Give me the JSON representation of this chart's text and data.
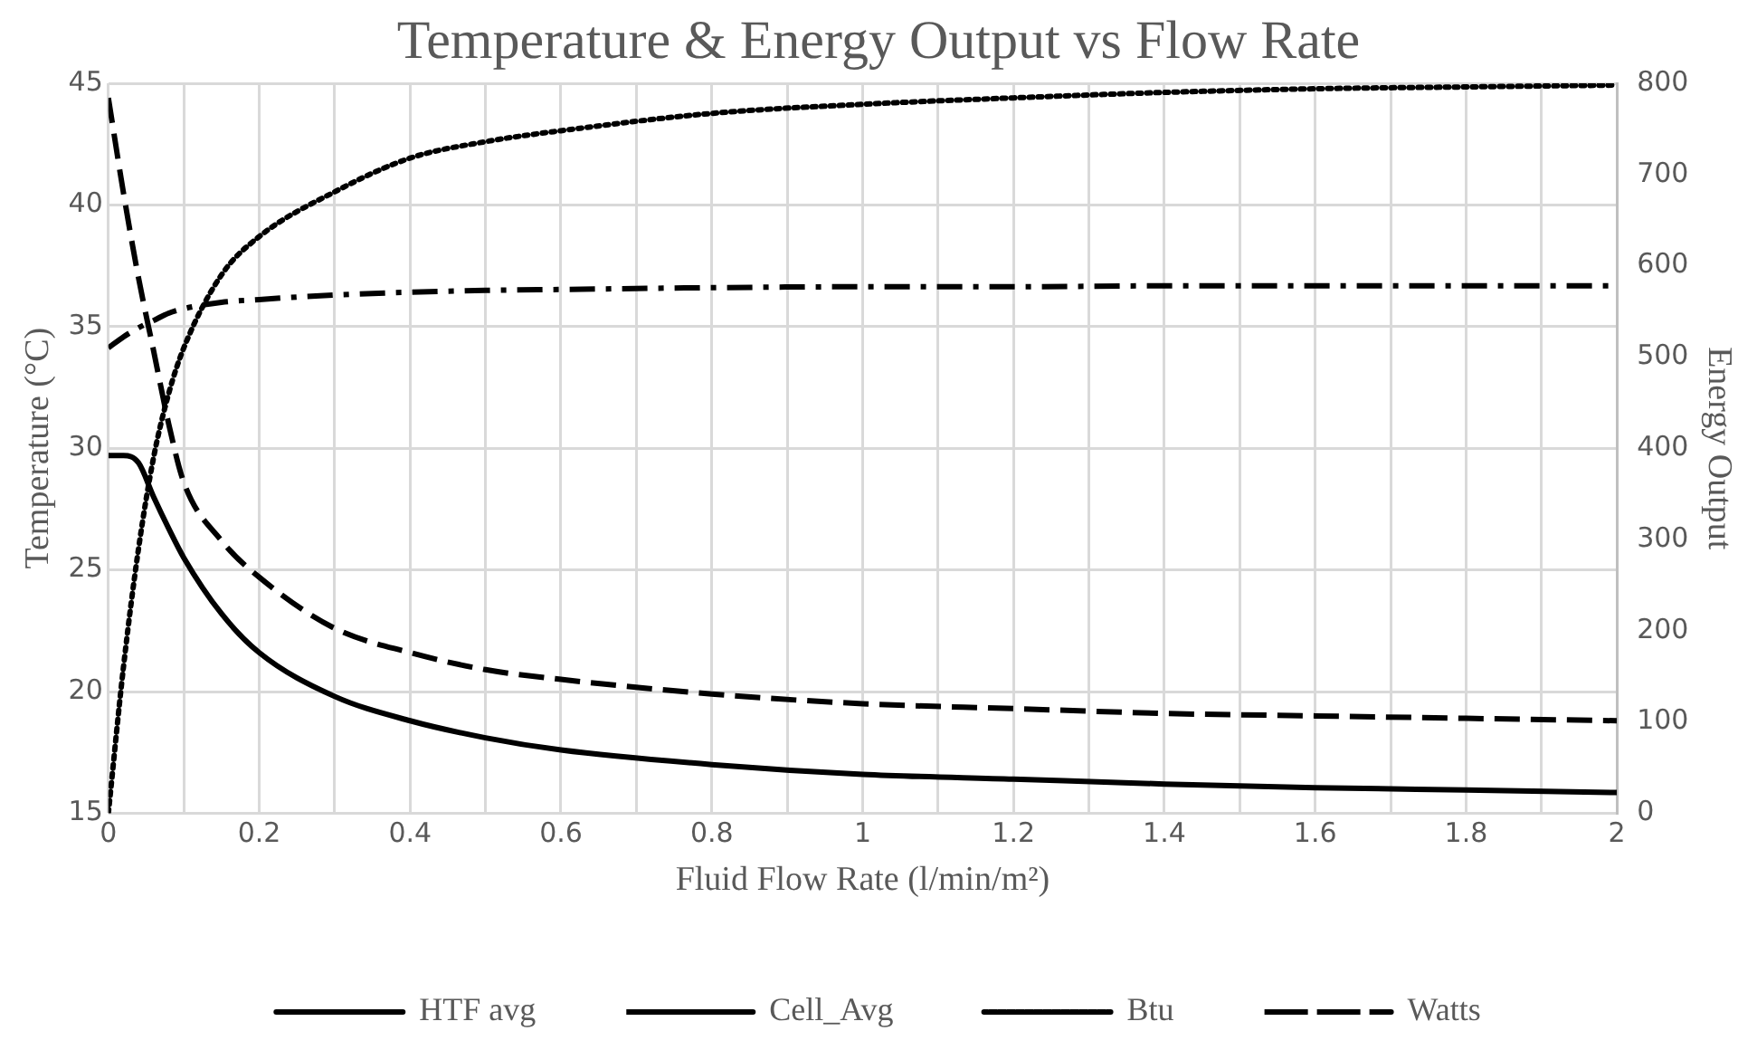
{
  "chart_data": {
    "type": "line",
    "title": "Temperature & Energy Output vs Flow Rate",
    "xlabel": "Fluid Flow Rate (l/min/m²)",
    "ylabel": "Temperature (°C)",
    "y2label": "Energy Output",
    "x": [
      0,
      0.02,
      0.04,
      0.06,
      0.08,
      0.1,
      0.15,
      0.2,
      0.3,
      0.4,
      0.5,
      0.6,
      0.8,
      1.0,
      1.2,
      1.4,
      1.6,
      1.8,
      2.0
    ],
    "series": [
      {
        "name": "HTF avg",
        "color": "#000000",
        "line_style": "solid",
        "values": [
          29.7,
          29.7,
          29.4,
          28.0,
          26.7,
          25.5,
          23.2,
          21.6,
          19.8,
          18.8,
          18.1,
          17.6,
          17.0,
          16.6,
          16.4,
          16.2,
          16.05,
          15.95,
          15.85
        ]
      },
      {
        "name": "Cell_Avg",
        "color": "#000000",
        "line_style": "dashed",
        "values": [
          44.4,
          40.5,
          37.0,
          34.0,
          31.0,
          28.6,
          26.2,
          24.7,
          22.6,
          21.6,
          20.9,
          20.5,
          19.9,
          19.5,
          19.3,
          19.1,
          19.0,
          18.9,
          18.8
        ]
      },
      {
        "name": "Btu",
        "color": "#000000",
        "line_style": "dotted",
        "axis": "y2",
        "values": [
          0,
          160,
          290,
          390,
          460,
          510,
          590,
          632,
          681,
          718,
          736,
          748,
          767,
          777,
          784,
          790,
          794,
          796,
          798
        ]
      },
      {
        "name": "Watts",
        "color": "#000000",
        "line_style": "dashdot",
        "axis": "y2",
        "values": [
          510,
          522,
          532,
          540,
          548,
          553,
          560,
          563,
          568,
          571,
          573,
          574,
          576,
          577,
          577,
          578,
          578,
          578,
          578
        ]
      }
    ],
    "xlim": [
      0,
      2
    ],
    "xticks": [
      0,
      {
        "value": 0.1,
        "label": null
      },
      0.2,
      {
        "value": 0.3,
        "label": null
      },
      0.4,
      {
        "value": 0.5,
        "label": null
      },
      0.6,
      {
        "value": 0.7,
        "label": null
      },
      0.8,
      {
        "value": 0.9,
        "label": null
      },
      1,
      {
        "value": 1.1,
        "label": null
      },
      1.2,
      {
        "value": 1.3,
        "label": null
      },
      1.4,
      {
        "value": 1.5,
        "label": null
      },
      1.6,
      {
        "value": 1.7,
        "label": null
      },
      1.8,
      {
        "value": 1.9,
        "label": null
      },
      2
    ],
    "ylim": [
      15,
      45
    ],
    "yticks": [
      15,
      20,
      25,
      30,
      35,
      40,
      45
    ],
    "y2lim": [
      0,
      800
    ],
    "y2ticks": [
      0,
      100,
      200,
      300,
      400,
      500,
      600,
      700,
      800
    ],
    "grid": true,
    "legend": "bottom",
    "marker": "none"
  }
}
